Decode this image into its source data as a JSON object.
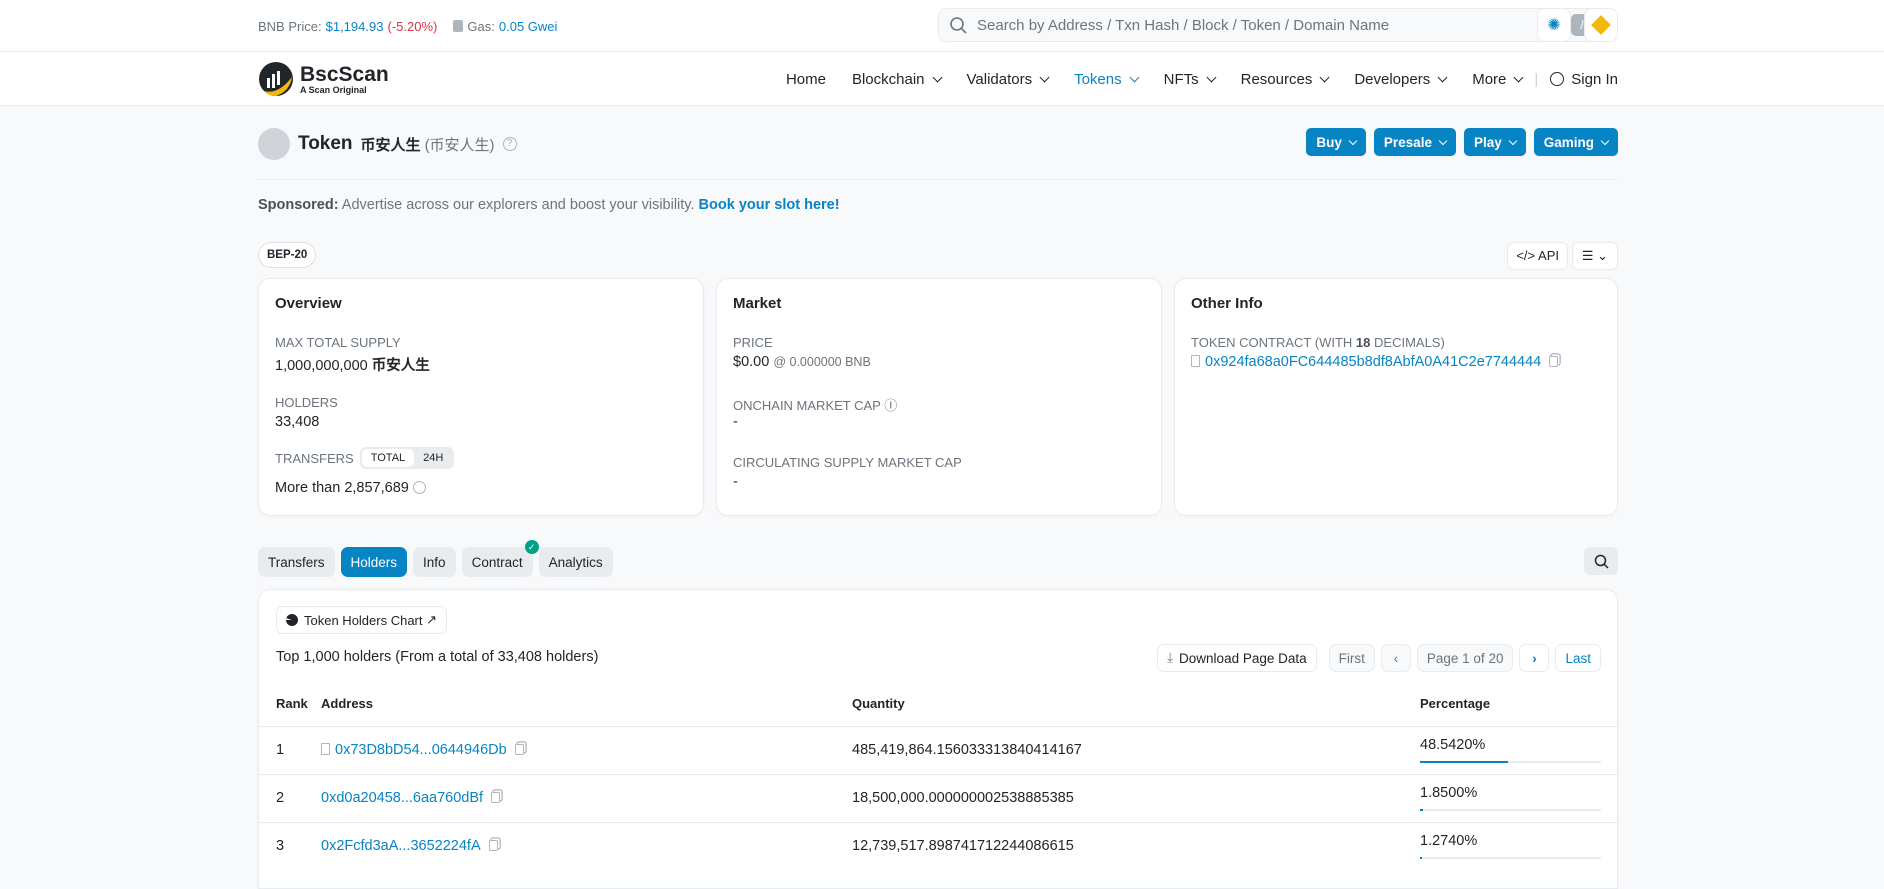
{
  "topbar": {
    "bnb_label": "BNB Price:",
    "bnb_price": "$1,194.93",
    "bnb_change": "(-5.20%)",
    "gas_label": "Gas:",
    "gas_value": "0.05 Gwei",
    "search_placeholder": "Search by Address / Txn Hash / Block / Token / Domain Name",
    "search_shortcut": "/"
  },
  "brand": {
    "name": "BscScan",
    "tagline": "A Scan Original"
  },
  "nav": {
    "items": [
      "Home",
      "Blockchain",
      "Validators",
      "Tokens",
      "NFTs",
      "Resources",
      "Developers",
      "More"
    ],
    "active": "Tokens",
    "sign_in": "Sign In"
  },
  "header": {
    "title": "Token",
    "token_name": "币安人生",
    "token_symbol": "(币安人生)",
    "buttons": [
      "Buy",
      "Presale",
      "Play",
      "Gaming"
    ]
  },
  "sponsored": {
    "label": "Sponsored:",
    "text": "Advertise across our explorers and boost your visibility.",
    "link": "Book your slot here!"
  },
  "badge": "BEP-20",
  "tools": {
    "api": "API"
  },
  "overview": {
    "title": "Overview",
    "max_supply_label": "MAX TOTAL SUPPLY",
    "max_supply": "1,000,000,000",
    "max_supply_unit": "币安人生",
    "holders_label": "HOLDERS",
    "holders": "33,408",
    "transfers_label": "TRANSFERS",
    "transfers_tabs": [
      "TOTAL",
      "24H"
    ],
    "transfers_value": "More than 2,857,689"
  },
  "market": {
    "title": "Market",
    "price_label": "PRICE",
    "price": "$0.00",
    "price_bnb": "@ 0.000000 BNB",
    "mcap_label": "ONCHAIN MARKET CAP",
    "mcap": "-",
    "circ_label": "CIRCULATING SUPPLY MARKET CAP",
    "circ": "-"
  },
  "other": {
    "title": "Other Info",
    "contract_label_pre": "TOKEN CONTRACT (WITH",
    "decimals": "18",
    "contract_label_post": "DECIMALS)",
    "contract": "0x924fa68a0FC644485b8df8AbfA0A41C2e7744444"
  },
  "tabs": {
    "items": [
      "Transfers",
      "Holders",
      "Info",
      "Contract",
      "Analytics"
    ],
    "active": "Holders"
  },
  "holders": {
    "chart_button": "Token Holders Chart",
    "summary": "Top 1,000 holders (From a total of 33,408 holders)",
    "download": "Download Page Data",
    "first": "First",
    "page": "Page 1 of 20",
    "last": "Last",
    "columns": [
      "Rank",
      "Address",
      "Quantity",
      "Percentage"
    ],
    "rows": [
      {
        "rank": "1",
        "address": "0x73D8bD54...0644946Db",
        "contract": true,
        "quantity": "485,419,864.156033313840414167",
        "percentage": "48.5420%",
        "pct": 48.542
      },
      {
        "rank": "2",
        "address": "0xd0a20458...6aa760dBf",
        "contract": false,
        "quantity": "18,500,000.000000002538885385",
        "percentage": "1.8500%",
        "pct": 1.85
      },
      {
        "rank": "3",
        "address": "0x2Fcfd3aA...3652224fA",
        "contract": false,
        "quantity": "12,739,517.898741712244086615",
        "percentage": "1.2740%",
        "pct": 1.274
      }
    ]
  },
  "colors": {
    "accent": "#0784c3",
    "negative": "#dc3545",
    "verified": "#00a186"
  }
}
